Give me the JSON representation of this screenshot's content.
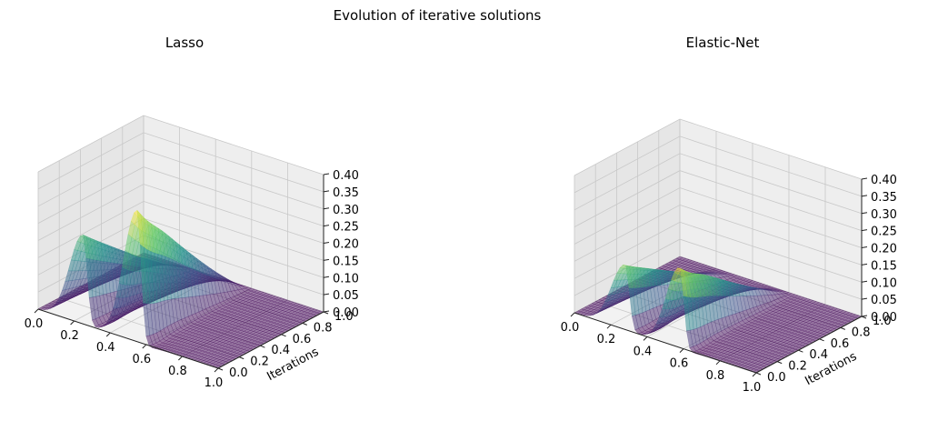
{
  "figure": {
    "suptitle": "Evolution of iterative solutions"
  },
  "colors": {
    "pane_left": "#e6e6e6",
    "pane_right": "#eeeeee",
    "pane_floor": "#f2f2f2",
    "grid": "#c8c8c8",
    "axis": "#222222",
    "surface_alpha": 0.5,
    "colormap": "viridis"
  },
  "chart_data": [
    {
      "type": "surface3d",
      "title": "Lasso",
      "xlabel": "",
      "ylabel": "Iterations",
      "zlabel": "",
      "xlim": [
        0,
        1
      ],
      "ylim": [
        0,
        1
      ],
      "zlim": [
        0,
        0.4
      ],
      "x_ticks": [
        "0.0",
        "0.2",
        "0.4",
        "0.6",
        "0.8",
        "1.0"
      ],
      "y_ticks": [
        "0.0",
        "0.2",
        "0.4",
        "0.6",
        "0.8",
        "1.0"
      ],
      "z_ticks": [
        "0.00",
        "0.05",
        "0.10",
        "0.15",
        "0.20",
        "0.25",
        "0.30",
        "0.35",
        "0.40"
      ],
      "peaks": [
        {
          "x_center": 0.25,
          "z_max": 0.26
        },
        {
          "x_center": 0.55,
          "z_max": 0.39
        }
      ]
    },
    {
      "type": "surface3d",
      "title": "Elastic-Net",
      "xlabel": "",
      "ylabel": "Iterations",
      "zlabel": "",
      "xlim": [
        0,
        1
      ],
      "ylim": [
        0,
        1
      ],
      "zlim": [
        0,
        0.4
      ],
      "x_ticks": [
        "0.0",
        "0.2",
        "0.4",
        "0.6",
        "0.8",
        "1.0"
      ],
      "y_ticks": [
        "0.0",
        "0.2",
        "0.4",
        "0.6",
        "0.8",
        "1.0"
      ],
      "z_ticks": [
        "0.00",
        "0.05",
        "0.10",
        "0.15",
        "0.20",
        "0.25",
        "0.30",
        "0.35",
        "0.40"
      ],
      "peaks": [
        {
          "x_center": 0.28,
          "z_max": 0.19
        },
        {
          "x_center": 0.58,
          "z_max": 0.24
        }
      ]
    }
  ]
}
